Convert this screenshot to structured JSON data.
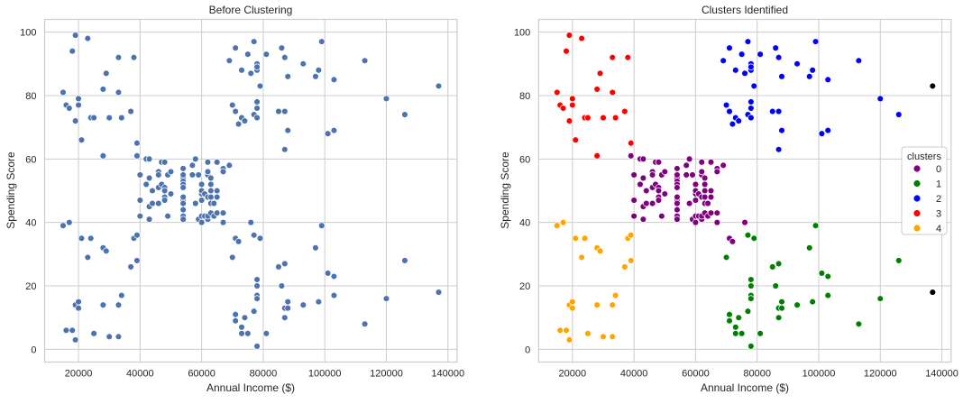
{
  "chart_data": [
    {
      "type": "scatter",
      "title": "Before Clustering",
      "xlabel": "Annual Income ($)",
      "ylabel": "Spending Score",
      "xlim": [
        9000,
        143000
      ],
      "ylim": [
        -4,
        104
      ],
      "xticks": [
        20000,
        40000,
        60000,
        80000,
        100000,
        120000,
        140000
      ],
      "yticks": [
        0,
        20,
        40,
        60,
        80,
        100
      ],
      "grid": true,
      "color": "#4c72b0"
    },
    {
      "type": "scatter",
      "title": "Clusters Identified",
      "xlabel": "Annual Income ($)",
      "ylabel": "Spending Score",
      "xlim": [
        9000,
        143000
      ],
      "ylim": [
        -4,
        104
      ],
      "xticks": [
        20000,
        40000,
        60000,
        80000,
        100000,
        120000,
        140000
      ],
      "yticks": [
        0,
        20,
        40,
        60,
        80,
        100
      ],
      "grid": true,
      "legend": {
        "title": "clusters",
        "position": "right",
        "entries": [
          "0",
          "1",
          "2",
          "3",
          "4"
        ]
      },
      "cluster_colors": [
        "#800080",
        "#008000",
        "#0000ff",
        "#ff0000",
        "#ffa500"
      ]
    }
  ],
  "points": {
    "income": [
      15,
      15,
      16,
      16,
      17,
      17,
      18,
      18,
      19,
      19,
      19,
      19,
      20,
      20,
      20,
      20,
      21,
      21,
      23,
      23,
      24,
      24,
      25,
      25,
      28,
      28,
      28,
      28,
      29,
      29,
      30,
      30,
      33,
      33,
      33,
      33,
      34,
      34,
      37,
      37,
      38,
      38,
      39,
      39,
      39,
      39,
      40,
      40,
      40,
      40,
      42,
      42,
      43,
      43,
      43,
      43,
      44,
      44,
      46,
      46,
      46,
      46,
      47,
      47,
      48,
      48,
      48,
      48,
      48,
      48,
      49,
      49,
      50,
      50,
      54,
      54,
      54,
      54,
      54,
      54,
      54,
      54,
      54,
      54,
      54,
      54,
      57,
      57,
      58,
      58,
      59,
      59,
      60,
      60,
      60,
      60,
      60,
      60,
      61,
      61,
      62,
      62,
      62,
      62,
      62,
      62,
      63,
      63,
      63,
      63,
      63,
      63,
      64,
      64,
      65,
      65,
      65,
      65,
      67,
      67,
      67,
      67,
      69,
      69,
      70,
      70,
      71,
      71,
      71,
      71,
      71,
      71,
      72,
      72,
      73,
      73,
      73,
      73,
      74,
      74,
      75,
      75,
      76,
      76,
      77,
      77,
      77,
      77,
      78,
      78,
      78,
      78,
      78,
      78,
      78,
      78,
      78,
      78,
      78,
      78,
      79,
      79,
      81,
      81,
      85,
      85,
      86,
      86,
      87,
      87,
      87,
      87,
      87,
      87,
      88,
      88,
      88,
      88,
      93,
      93,
      97,
      97,
      98,
      98,
      99,
      99,
      101,
      101,
      103,
      103,
      103,
      103,
      113,
      113,
      120,
      120,
      126,
      126,
      137,
      137
    ],
    "income_multiplier": 1000,
    "score": [
      39,
      81,
      6,
      77,
      40,
      76,
      6,
      94,
      3,
      72,
      14,
      99,
      15,
      77,
      13,
      79,
      35,
      66,
      29,
      98,
      35,
      73,
      5,
      73,
      14,
      82,
      32,
      61,
      31,
      87,
      4,
      73,
      4,
      92,
      14,
      81,
      17,
      73,
      26,
      75,
      35,
      92,
      36,
      61,
      28,
      65,
      55,
      47,
      42,
      42,
      52,
      60,
      54,
      60,
      45,
      41,
      50,
      46,
      51,
      46,
      56,
      55,
      52,
      59,
      51,
      59,
      50,
      48,
      59,
      47,
      55,
      42,
      49,
      56,
      47,
      54,
      53,
      48,
      52,
      42,
      51,
      55,
      41,
      44,
      57,
      46,
      58,
      55,
      60,
      46,
      55,
      41,
      49,
      40,
      42,
      52,
      47,
      50,
      42,
      49,
      41,
      48,
      59,
      55,
      56,
      42,
      50,
      46,
      43,
      48,
      52,
      54,
      42,
      46,
      48,
      50,
      43,
      59,
      43,
      57,
      56,
      40,
      58,
      91,
      29,
      77,
      35,
      95,
      11,
      75,
      9,
      75,
      34,
      71,
      5,
      88,
      7,
      73,
      10,
      72,
      5,
      93,
      40,
      87,
      12,
      97,
      36,
      74,
      22,
      90,
      17,
      88,
      20,
      76,
      16,
      89,
      1,
      78,
      1,
      73,
      35,
      83,
      5,
      93,
      26,
      75,
      20,
      95,
      27,
      63,
      13,
      75,
      10,
      92,
      13,
      86,
      15,
      69,
      14,
      90,
      32,
      86,
      15,
      88,
      39,
      97,
      24,
      68,
      17,
      85,
      23,
      69,
      8,
      91,
      16,
      79,
      28,
      74,
      18,
      83
    ],
    "cluster": [
      4,
      3,
      4,
      3,
      4,
      3,
      4,
      3,
      4,
      3,
      4,
      3,
      4,
      3,
      4,
      3,
      4,
      3,
      4,
      3,
      4,
      3,
      4,
      3,
      4,
      3,
      4,
      3,
      4,
      3,
      4,
      3,
      4,
      3,
      4,
      3,
      4,
      3,
      4,
      3,
      4,
      3,
      4,
      0,
      4,
      3,
      0,
      0,
      0,
      0,
      0,
      0,
      0,
      0,
      0,
      0,
      0,
      0,
      0,
      0,
      0,
      0,
      0,
      0,
      0,
      0,
      0,
      0,
      0,
      0,
      0,
      0,
      0,
      0,
      0,
      0,
      0,
      0,
      0,
      0,
      0,
      0,
      0,
      0,
      0,
      0,
      0,
      0,
      0,
      0,
      0,
      0,
      0,
      0,
      0,
      0,
      0,
      0,
      0,
      0,
      0,
      0,
      0,
      0,
      0,
      0,
      0,
      0,
      0,
      0,
      0,
      0,
      0,
      0,
      0,
      0,
      0,
      0,
      0,
      0,
      0,
      0,
      0,
      2,
      1,
      2,
      0,
      2,
      1,
      2,
      1,
      2,
      0,
      2,
      1,
      2,
      1,
      2,
      1,
      2,
      1,
      2,
      0,
      2,
      1,
      2,
      1,
      2,
      1,
      2,
      1,
      2,
      1,
      2,
      1,
      2,
      1,
      2,
      1,
      2,
      1,
      2,
      1,
      2,
      1,
      2,
      1,
      2,
      1,
      2,
      1,
      2,
      1,
      2,
      1,
      2,
      1,
      2,
      1,
      2,
      1,
      2,
      1,
      2,
      1,
      2,
      1,
      2,
      1,
      2,
      1,
      2,
      1,
      2,
      1,
      2,
      1,
      2
    ]
  }
}
